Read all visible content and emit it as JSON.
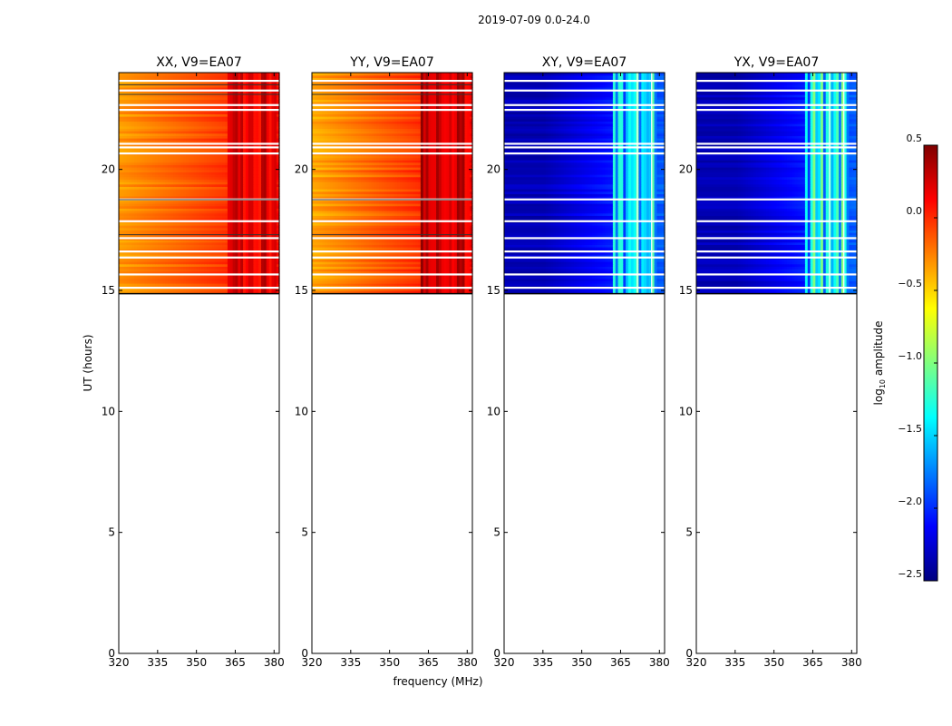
{
  "suptitle": "2019-07-09 0.0-24.0",
  "chart_data": {
    "type": "heatmap",
    "panels": [
      {
        "title": "XX, V9=EA07",
        "pol": "XX",
        "amplitude_range_log10": [
          -0.6,
          0.4
        ]
      },
      {
        "title": "YY, V9=EA07",
        "pol": "YY",
        "amplitude_range_log10": [
          -0.7,
          0.5
        ]
      },
      {
        "title": "XY, V9=EA07",
        "pol": "XY",
        "amplitude_range_log10": [
          -2.5,
          -0.8
        ]
      },
      {
        "title": "YX, V9=EA07",
        "pol": "YX",
        "amplitude_range_log10": [
          -2.5,
          -0.8
        ]
      }
    ],
    "xlabel": "frequency (MHz)",
    "ylabel": "UT (hours)",
    "xlim": [
      320,
      382
    ],
    "ylim": [
      0,
      24
    ],
    "xticks": [
      "320",
      "335",
      "350",
      "365",
      "380"
    ],
    "yticks": [
      "0",
      "5",
      "10",
      "15",
      "20"
    ],
    "data_time_range_hours": [
      14.9,
      24.0
    ],
    "bright_band_mhz": [
      362,
      378
    ],
    "colorbar": {
      "label_prefix": "log",
      "label_sub": "10",
      "label_suffix": " amplitude",
      "range": [
        -2.5,
        0.5
      ],
      "ticks": [
        "0.5",
        "0.0",
        "−0.5",
        "−1.0",
        "−1.5",
        "−2.0",
        "−2.5"
      ],
      "colormap": "jet"
    }
  }
}
